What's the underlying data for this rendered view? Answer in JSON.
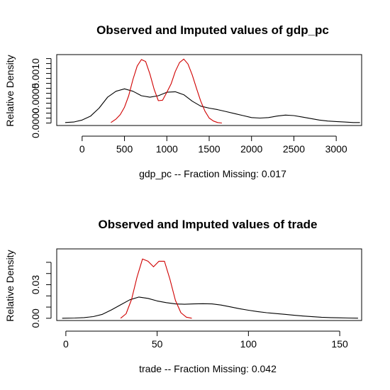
{
  "colors": {
    "observed": "#000000",
    "imputed": "#d00000",
    "axes": "#000000",
    "background": "#ffffff"
  },
  "chart_data": [
    {
      "type": "line",
      "title": "Observed and Imputed values of gdp_pc",
      "xlabel": "gdp_pc  --  Fraction Missing: 0.017",
      "ylabel": "Relative Density",
      "xlim": [
        -300,
        3300
      ],
      "ylim": [
        -5e-05,
        0.00138
      ],
      "x_ticks": [
        0,
        500,
        1000,
        1500,
        2000,
        2500,
        3000
      ],
      "x_tick_labels": [
        "0",
        "500",
        "1000",
        "1500",
        "2000",
        "2500",
        "3000"
      ],
      "y_ticks": [
        0,
        0.0001,
        0.0002,
        0.0003,
        0.0004,
        0.0005,
        0.0006,
        0.0007,
        0.0008,
        0.0009,
        0.001,
        0.0011,
        0.0012,
        0.0013
      ],
      "y_tick_labels": [
        "0.0000",
        "",
        "",
        "",
        "",
        "0.0005",
        "",
        "",
        "",
        "",
        "0.0010",
        "",
        "",
        ""
      ],
      "series": [
        {
          "color": "observed",
          "x": [
            -200,
            -100,
            0,
            100,
            200,
            300,
            400,
            500,
            600,
            700,
            800,
            900,
            1000,
            1100,
            1200,
            1300,
            1400,
            1500,
            1600,
            1700,
            1800,
            1900,
            2000,
            2100,
            2200,
            2300,
            2400,
            2500,
            2600,
            2700,
            2800,
            2900,
            3000,
            3100,
            3200,
            3280
          ],
          "y": [
            1e-05,
            2e-05,
            6e-05,
            0.00014,
            0.0003,
            0.00052,
            0.00064,
            0.00069,
            0.00064,
            0.00055,
            0.00052,
            0.00055,
            0.00062,
            0.00063,
            0.00057,
            0.00044,
            0.00034,
            0.0003,
            0.00027,
            0.00023,
            0.00019,
            0.00015,
            0.00011,
            0.0001,
            0.00011,
            0.00014,
            0.00016,
            0.00015,
            0.00012,
            9e-05,
            6e-05,
            4e-05,
            3e-05,
            2e-05,
            1e-05,
            1e-05
          ]
        },
        {
          "color": "imputed",
          "x": [
            340,
            400,
            450,
            500,
            550,
            600,
            650,
            700,
            750,
            800,
            850,
            900,
            950,
            1000,
            1050,
            1100,
            1150,
            1200,
            1250,
            1300,
            1350,
            1400,
            1450,
            1500,
            1550,
            1600,
            1650
          ],
          "y": [
            1e-05,
            8e-05,
            0.00017,
            0.00032,
            0.00055,
            0.00088,
            0.00115,
            0.00128,
            0.00124,
            0.00099,
            0.00068,
            0.00045,
            0.00046,
            0.00062,
            0.00079,
            0.00104,
            0.00122,
            0.00129,
            0.00119,
            0.00097,
            0.0007,
            0.00044,
            0.00024,
            0.0001,
            4e-05,
            1e-05,
            0.0
          ]
        }
      ]
    },
    {
      "type": "line",
      "title": "Observed and Imputed values of trade",
      "xlabel": "trade  --  Fraction Missing: 0.042",
      "ylabel": "Relative Density",
      "xlim": [
        -5,
        162
      ],
      "ylim": [
        -0.002,
        0.062
      ],
      "x_ticks": [
        0,
        50,
        100,
        150
      ],
      "x_tick_labels": [
        "0",
        "50",
        "100",
        "150"
      ],
      "y_ticks": [
        0,
        0.01,
        0.02,
        0.03,
        0.04,
        0.05
      ],
      "y_tick_labels": [
        "0.00",
        "",
        "",
        "0.03",
        "",
        ""
      ],
      "series": [
        {
          "color": "observed",
          "x": [
            -2,
            5,
            10,
            15,
            20,
            25,
            30,
            35,
            40,
            45,
            50,
            55,
            60,
            65,
            70,
            75,
            80,
            85,
            90,
            95,
            100,
            105,
            110,
            115,
            120,
            125,
            130,
            135,
            140,
            145,
            150,
            155,
            160
          ],
          "y": [
            0.0,
            0.0002,
            0.0006,
            0.0015,
            0.0035,
            0.0075,
            0.012,
            0.0165,
            0.019,
            0.0178,
            0.0155,
            0.014,
            0.0128,
            0.0125,
            0.0128,
            0.013,
            0.0128,
            0.0118,
            0.0102,
            0.0086,
            0.0072,
            0.006,
            0.005,
            0.0042,
            0.0035,
            0.0027,
            0.002,
            0.0014,
            0.0009,
            0.0006,
            0.0004,
            0.0002,
            0.0001
          ]
        },
        {
          "color": "imputed",
          "x": [
            30,
            33,
            36,
            39,
            42,
            45,
            48,
            51,
            54,
            57,
            60,
            63,
            66,
            69
          ],
          "y": [
            0.0,
            0.004,
            0.017,
            0.037,
            0.053,
            0.051,
            0.046,
            0.051,
            0.051,
            0.035,
            0.016,
            0.005,
            0.001,
            0.0
          ]
        }
      ]
    }
  ]
}
